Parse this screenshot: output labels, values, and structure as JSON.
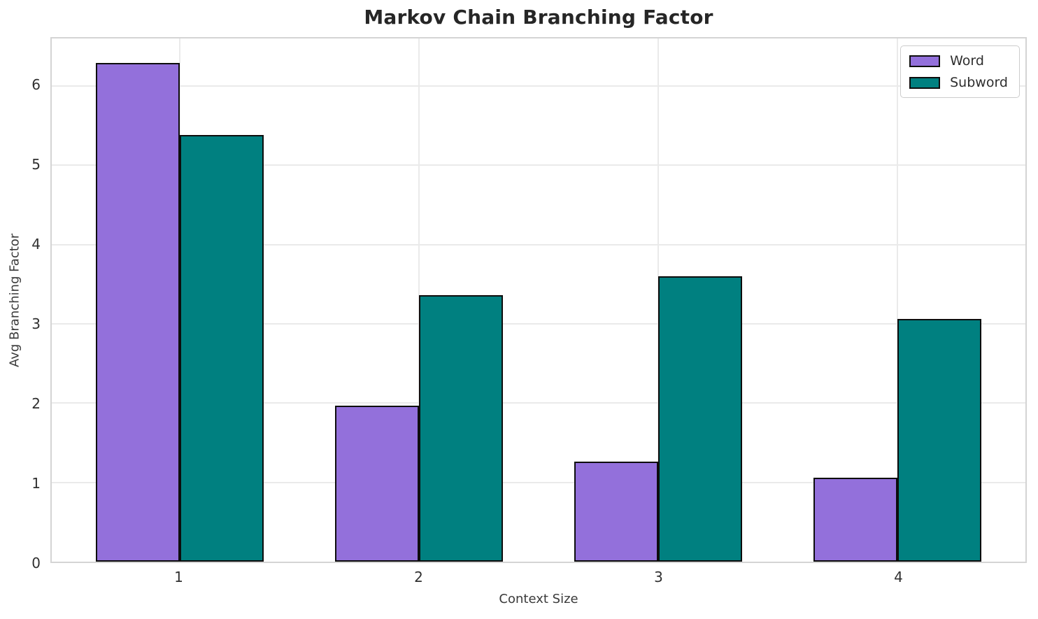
{
  "chart_data": {
    "type": "bar",
    "title": "Markov Chain Branching Factor",
    "xlabel": "Context Size",
    "ylabel": "Avg Branching Factor",
    "categories": [
      "1",
      "2",
      "3",
      "4"
    ],
    "x_positions": [
      1,
      2,
      3,
      4
    ],
    "series": [
      {
        "name": "Word",
        "color": "#9370DB",
        "values": [
          6.29,
          1.97,
          1.26,
          1.06
        ]
      },
      {
        "name": "Subword",
        "color": "#008080",
        "values": [
          5.38,
          3.36,
          3.6,
          3.06
        ]
      }
    ],
    "bar_width": 0.35,
    "bar_edge_color": "#0d0d0d",
    "ylim": [
      0,
      6.6
    ],
    "xlim": [
      0.465,
      4.535
    ],
    "yticks": [
      0,
      1,
      2,
      3,
      4,
      5,
      6
    ],
    "grid": "both",
    "grid_color": "#eaeaea",
    "legend_position": "upper right",
    "background": "#ffffff"
  }
}
